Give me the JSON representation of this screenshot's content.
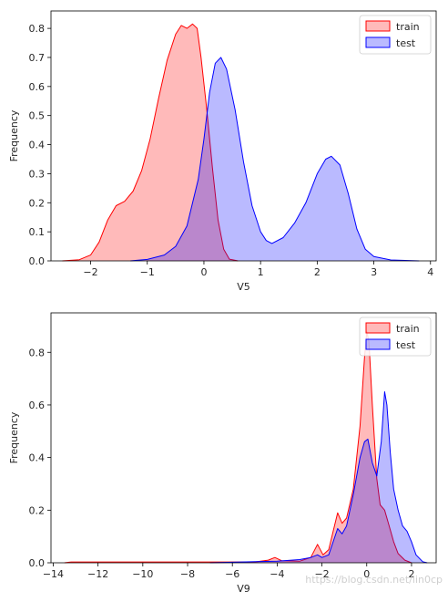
{
  "watermark": "https://blog.csdn.net/lin0cp",
  "chart_data": [
    {
      "type": "area",
      "xlabel": "V5",
      "ylabel": "Frequency",
      "xlim": [
        -2.7,
        4.1
      ],
      "ylim": [
        0,
        0.86
      ],
      "xticks": [
        -2,
        -1,
        0,
        1,
        2,
        3,
        4
      ],
      "yticks": [
        0.0,
        0.1,
        0.2,
        0.3,
        0.4,
        0.5,
        0.6,
        0.7,
        0.8
      ],
      "ytick_labels": [
        "0.0",
        "0.1",
        "0.2",
        "0.3",
        "0.4",
        "0.5",
        "0.6",
        "0.7",
        "0.8"
      ],
      "grid": false,
      "legend_position": "upper right",
      "series": [
        {
          "name": "train",
          "color": "#ff0000",
          "points": [
            [
              -2.5,
              0.0
            ],
            [
              -2.2,
              0.004
            ],
            [
              -2.0,
              0.02
            ],
            [
              -1.85,
              0.065
            ],
            [
              -1.7,
              0.14
            ],
            [
              -1.55,
              0.19
            ],
            [
              -1.4,
              0.205
            ],
            [
              -1.25,
              0.24
            ],
            [
              -1.1,
              0.31
            ],
            [
              -0.95,
              0.42
            ],
            [
              -0.8,
              0.56
            ],
            [
              -0.65,
              0.69
            ],
            [
              -0.5,
              0.78
            ],
            [
              -0.4,
              0.81
            ],
            [
              -0.3,
              0.8
            ],
            [
              -0.2,
              0.815
            ],
            [
              -0.12,
              0.8
            ],
            [
              -0.05,
              0.7
            ],
            [
              0.05,
              0.52
            ],
            [
              0.15,
              0.32
            ],
            [
              0.25,
              0.14
            ],
            [
              0.35,
              0.04
            ],
            [
              0.45,
              0.006
            ],
            [
              0.6,
              0.0
            ]
          ]
        },
        {
          "name": "test",
          "color": "#0000ff",
          "points": [
            [
              -1.3,
              0.0
            ],
            [
              -1.0,
              0.005
            ],
            [
              -0.7,
              0.02
            ],
            [
              -0.5,
              0.05
            ],
            [
              -0.3,
              0.12
            ],
            [
              -0.1,
              0.28
            ],
            [
              0.0,
              0.42
            ],
            [
              0.1,
              0.58
            ],
            [
              0.2,
              0.68
            ],
            [
              0.3,
              0.7
            ],
            [
              0.4,
              0.66
            ],
            [
              0.55,
              0.52
            ],
            [
              0.7,
              0.34
            ],
            [
              0.85,
              0.19
            ],
            [
              1.0,
              0.1
            ],
            [
              1.1,
              0.07
            ],
            [
              1.2,
              0.06
            ],
            [
              1.4,
              0.08
            ],
            [
              1.6,
              0.13
            ],
            [
              1.8,
              0.2
            ],
            [
              2.0,
              0.3
            ],
            [
              2.15,
              0.35
            ],
            [
              2.25,
              0.36
            ],
            [
              2.4,
              0.33
            ],
            [
              2.55,
              0.23
            ],
            [
              2.7,
              0.11
            ],
            [
              2.85,
              0.04
            ],
            [
              3.0,
              0.015
            ],
            [
              3.3,
              0.003
            ],
            [
              3.8,
              0.0
            ]
          ]
        }
      ]
    },
    {
      "type": "area",
      "xlabel": "V9",
      "ylabel": "Frequency",
      "xlim": [
        -14.1,
        3.1
      ],
      "ylim": [
        0,
        0.95
      ],
      "xticks": [
        -14,
        -12,
        -10,
        -8,
        -6,
        -4,
        -2,
        0,
        2
      ],
      "xtick_labels": [
        "−14",
        "−12",
        "−10",
        "−8",
        "−6",
        "−4",
        "−2",
        "0",
        "2"
      ],
      "yticks": [
        0.0,
        0.2,
        0.4,
        0.6,
        0.8
      ],
      "ytick_labels": [
        "0.0",
        "0.2",
        "0.4",
        "0.6",
        "0.8"
      ],
      "grid": false,
      "legend_position": "upper right",
      "series": [
        {
          "name": "train",
          "color": "#ff0000",
          "points": [
            [
              -13.5,
              0.0
            ],
            [
              -13.2,
              0.003
            ],
            [
              -10,
              0.003
            ],
            [
              -7,
              0.003
            ],
            [
              -5,
              0.003
            ],
            [
              -4.4,
              0.01
            ],
            [
              -4.1,
              0.02
            ],
            [
              -3.8,
              0.008
            ],
            [
              -3.0,
              0.006
            ],
            [
              -2.5,
              0.02
            ],
            [
              -2.2,
              0.07
            ],
            [
              -1.95,
              0.03
            ],
            [
              -1.7,
              0.05
            ],
            [
              -1.5,
              0.12
            ],
            [
              -1.3,
              0.19
            ],
            [
              -1.1,
              0.15
            ],
            [
              -0.9,
              0.17
            ],
            [
              -0.6,
              0.28
            ],
            [
              -0.3,
              0.52
            ],
            [
              -0.1,
              0.78
            ],
            [
              0.0,
              0.88
            ],
            [
              0.1,
              0.84
            ],
            [
              0.25,
              0.6
            ],
            [
              0.45,
              0.32
            ],
            [
              0.6,
              0.22
            ],
            [
              0.8,
              0.2
            ],
            [
              1.0,
              0.14
            ],
            [
              1.2,
              0.08
            ],
            [
              1.4,
              0.035
            ],
            [
              1.7,
              0.01
            ],
            [
              2.0,
              0.0
            ]
          ]
        },
        {
          "name": "test",
          "color": "#0000ff",
          "points": [
            [
              -7.0,
              0.0
            ],
            [
              -6.0,
              0.002
            ],
            [
              -5.0,
              0.004
            ],
            [
              -4.0,
              0.006
            ],
            [
              -3.0,
              0.012
            ],
            [
              -2.5,
              0.02
            ],
            [
              -2.2,
              0.03
            ],
            [
              -2.0,
              0.02
            ],
            [
              -1.7,
              0.03
            ],
            [
              -1.5,
              0.08
            ],
            [
              -1.3,
              0.13
            ],
            [
              -1.1,
              0.11
            ],
            [
              -0.9,
              0.14
            ],
            [
              -0.6,
              0.26
            ],
            [
              -0.3,
              0.4
            ],
            [
              -0.1,
              0.46
            ],
            [
              0.05,
              0.47
            ],
            [
              0.25,
              0.38
            ],
            [
              0.45,
              0.33
            ],
            [
              0.65,
              0.46
            ],
            [
              0.8,
              0.65
            ],
            [
              0.9,
              0.6
            ],
            [
              1.05,
              0.42
            ],
            [
              1.2,
              0.28
            ],
            [
              1.4,
              0.2
            ],
            [
              1.6,
              0.14
            ],
            [
              1.8,
              0.12
            ],
            [
              2.0,
              0.08
            ],
            [
              2.2,
              0.03
            ],
            [
              2.5,
              0.004
            ],
            [
              2.7,
              0.0
            ]
          ]
        }
      ]
    }
  ]
}
